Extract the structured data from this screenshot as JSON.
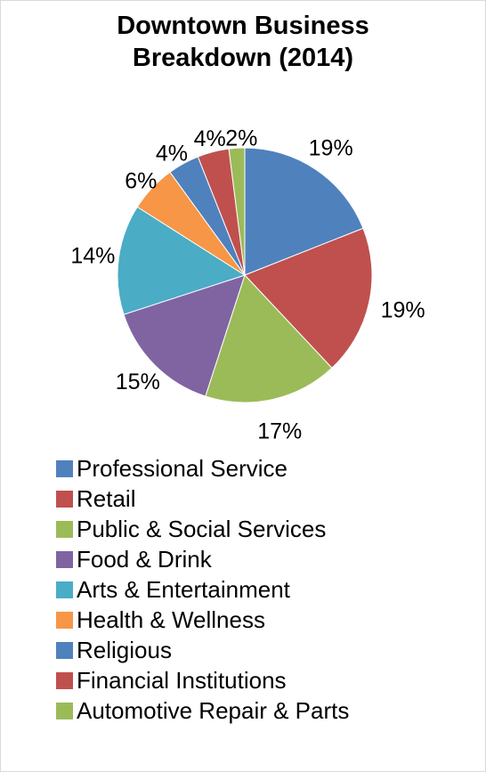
{
  "chart_data": {
    "type": "pie",
    "title": "Downtown Business Breakdown (2014)",
    "title_lines": [
      "Downtown Business",
      "Breakdown (2014)"
    ],
    "categories": [
      "Professional Service",
      "Retail",
      "Public & Social Services",
      "Food & Drink",
      "Arts & Entertainment",
      "Health & Wellness",
      "Religious",
      "Financial Institutions",
      "Automotive Repair & Parts"
    ],
    "values": [
      19,
      19,
      17,
      15,
      14,
      6,
      4,
      4,
      2
    ],
    "data_labels": [
      "19%",
      "19%",
      "17%",
      "15%",
      "14%",
      "6%",
      "4%",
      "4%",
      "2%"
    ],
    "colors": [
      "#4F81BD",
      "#C0504D",
      "#9BBB59",
      "#8064A2",
      "#4BACC6",
      "#F79646",
      "#4F81BD",
      "#C0504D",
      "#9BBB59"
    ],
    "legend_position": "bottom",
    "start_angle": "12 o'clock",
    "direction": "clockwise"
  }
}
